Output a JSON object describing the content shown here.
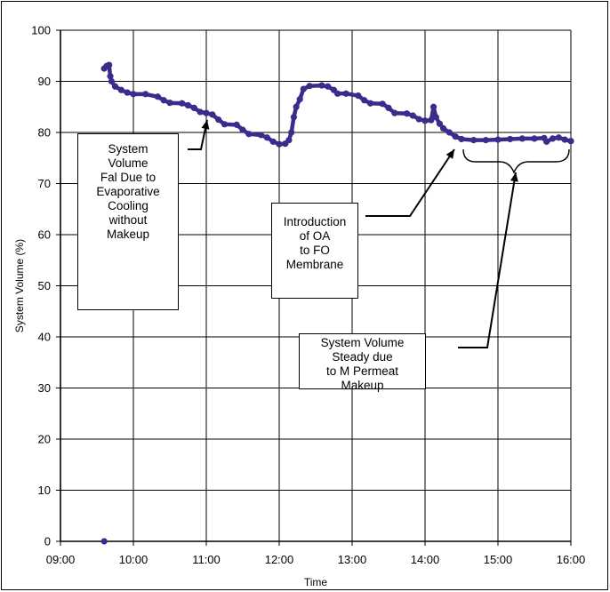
{
  "chart_data": {
    "type": "scatter",
    "xlabel": "Time",
    "ylabel": "System Volume (%)",
    "xlim": [
      "09:00",
      "16:00"
    ],
    "ylim": [
      0,
      100
    ],
    "x_ticks": [
      "09:00",
      "10:00",
      "11:00",
      "12:00",
      "13:00",
      "14:00",
      "15:00",
      "16:00"
    ],
    "y_ticks": [
      "0",
      "10",
      "20",
      "30",
      "40",
      "50",
      "60",
      "70",
      "80",
      "90",
      "100"
    ],
    "grid": true,
    "color": "#3d2a8c",
    "series": [
      {
        "values": [
          [
            "09:36",
            92.5
          ],
          [
            "09:38",
            93.0
          ],
          [
            "09:40",
            93.2
          ],
          [
            "09:41",
            91.0
          ],
          [
            "09:42",
            90.0
          ],
          [
            "09:45",
            89.0
          ],
          [
            "09:50",
            88.3
          ],
          [
            "09:55",
            87.8
          ],
          [
            "10:00",
            87.5
          ],
          [
            "10:10",
            87.5
          ],
          [
            "10:20",
            87.0
          ],
          [
            "10:25",
            86.3
          ],
          [
            "10:30",
            85.8
          ],
          [
            "10:40",
            85.7
          ],
          [
            "10:45",
            85.3
          ],
          [
            "10:50",
            84.8
          ],
          [
            "10:55",
            84.0
          ],
          [
            "11:00",
            83.8
          ],
          [
            "11:05",
            83.5
          ],
          [
            "11:10",
            82.5
          ],
          [
            "11:15",
            81.6
          ],
          [
            "11:25",
            81.5
          ],
          [
            "11:30",
            80.5
          ],
          [
            "11:35",
            79.7
          ],
          [
            "11:45",
            79.5
          ],
          [
            "11:50",
            79.0
          ],
          [
            "11:55",
            78.2
          ],
          [
            "12:00",
            77.7
          ],
          [
            "12:05",
            77.8
          ],
          [
            "12:08",
            78.5
          ],
          [
            "12:10",
            80.0
          ],
          [
            "12:12",
            83.0
          ],
          [
            "12:14",
            85.0
          ],
          [
            "12:17",
            86.5
          ],
          [
            "12:20",
            88.5
          ],
          [
            "12:25",
            89.1
          ],
          [
            "12:35",
            89.2
          ],
          [
            "12:40",
            89.0
          ],
          [
            "12:45",
            88.3
          ],
          [
            "12:48",
            87.6
          ],
          [
            "12:55",
            87.6
          ],
          [
            "13:05",
            87.2
          ],
          [
            "13:10",
            86.3
          ],
          [
            "13:15",
            85.7
          ],
          [
            "13:25",
            85.6
          ],
          [
            "13:30",
            84.8
          ],
          [
            "13:35",
            83.8
          ],
          [
            "13:45",
            83.7
          ],
          [
            "13:50",
            83.3
          ],
          [
            "13:55",
            82.6
          ],
          [
            "14:00",
            82.3
          ],
          [
            "14:05",
            82.4
          ],
          [
            "14:07",
            85.0
          ],
          [
            "14:09",
            83.0
          ],
          [
            "14:12",
            81.7
          ],
          [
            "14:15",
            80.8
          ],
          [
            "14:20",
            80.0
          ],
          [
            "14:25",
            79.2
          ],
          [
            "14:30",
            78.7
          ],
          [
            "14:40",
            78.5
          ],
          [
            "14:50",
            78.5
          ],
          [
            "15:00",
            78.6
          ],
          [
            "15:10",
            78.7
          ],
          [
            "15:20",
            78.8
          ],
          [
            "15:30",
            78.8
          ],
          [
            "15:38",
            78.9
          ],
          [
            "15:40",
            78.2
          ],
          [
            "15:45",
            78.8
          ],
          [
            "15:50",
            79.0
          ],
          [
            "15:55",
            78.6
          ],
          [
            "16:00",
            78.3
          ]
        ]
      }
    ],
    "outliers": [
      [
        "09:36",
        0
      ]
    ],
    "annotations": [
      {
        "text": "System\nVolume\nFal Due to\nEvaporative\nCooling\nwithout\nMakeup",
        "arrow_to": [
          "11:00",
          83.8
        ]
      },
      {
        "text": "Introduction\nof OA\nto FO\nMembrane",
        "arrow_to": [
          "14:28",
          78.3
        ]
      },
      {
        "text": "System Volume\nSteady due\nto M Permeat\nMakeup",
        "arrow_to": [
          "15:21",
          71.8
        ]
      }
    ]
  }
}
